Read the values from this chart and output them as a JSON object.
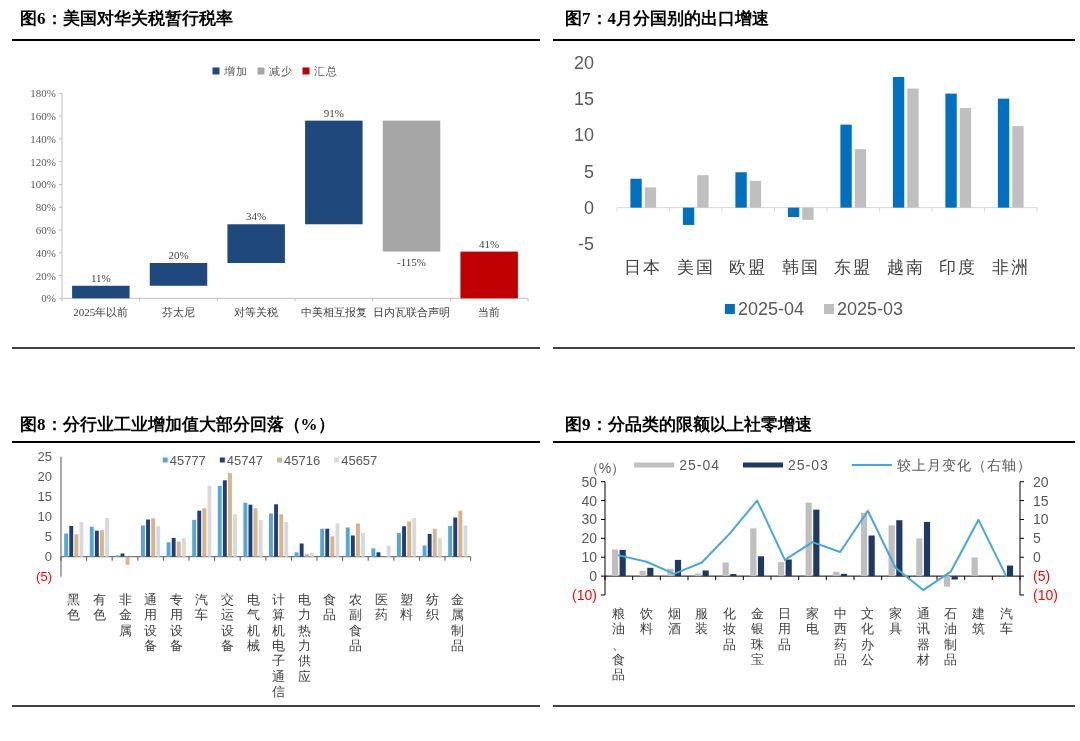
{
  "chart_data": [
    {
      "type": "bar",
      "title": "图6：美国对华关税暂行税率",
      "categories": [
        "2025年以前",
        "芬太尼",
        "对等关税",
        "中美相互报复",
        "日内瓦联合声明",
        "当前"
      ],
      "series": [
        {
          "name": "增加",
          "color": "#1f497d",
          "values": [
            11,
            20,
            34,
            91,
            null,
            null
          ],
          "base": [
            0,
            11,
            31,
            65,
            null,
            null
          ],
          "value_labels": [
            "11%",
            "20%",
            "34%",
            "91%",
            null,
            null
          ]
        },
        {
          "name": "减少",
          "color": "#a6a6a6",
          "values": [
            null,
            null,
            null,
            null,
            -115,
            null
          ],
          "base": [
            null,
            null,
            null,
            null,
            156,
            null
          ],
          "value_labels": [
            null,
            null,
            null,
            null,
            "-115%",
            null
          ]
        },
        {
          "name": "汇总",
          "color": "#c00000",
          "values": [
            null,
            null,
            null,
            null,
            null,
            41
          ],
          "base": [
            null,
            null,
            null,
            null,
            null,
            0
          ],
          "value_labels": [
            null,
            null,
            null,
            null,
            null,
            "41%"
          ]
        }
      ],
      "ylim": [
        0,
        180
      ],
      "yticks": [
        {
          "value": 0,
          "label": "0%"
        },
        {
          "value": 20,
          "label": "20%"
        },
        {
          "value": 40,
          "label": "40%"
        },
        {
          "value": 60,
          "label": "60%"
        },
        {
          "value": 80,
          "label": "80%"
        },
        {
          "value": 100,
          "label": "100%"
        },
        {
          "value": 120,
          "label": "120%"
        },
        {
          "value": 140,
          "label": "140%"
        },
        {
          "value": 160,
          "label": "160%"
        },
        {
          "value": 180,
          "label": "180%"
        }
      ],
      "legend": "top"
    },
    {
      "type": "bar",
      "title": "图7：4月分国别的出口增速",
      "categories": [
        "日本",
        "美国",
        "欧盟",
        "韩国",
        "东盟",
        "越南",
        "印度",
        "非洲"
      ],
      "series": [
        {
          "name": "2025-04",
          "color": "#0070c0",
          "values": [
            4.0,
            -2.4,
            4.9,
            -1.3,
            11.5,
            18.1,
            15.8,
            15.1
          ]
        },
        {
          "name": "2025-03",
          "color": "#bfbfbf",
          "values": [
            2.8,
            4.5,
            3.7,
            -1.7,
            8.1,
            16.5,
            13.8,
            11.3
          ]
        }
      ],
      "ylim": [
        -5,
        20
      ],
      "yticks": [
        -5,
        0,
        5,
        10,
        15,
        20
      ],
      "legend": "bottom"
    },
    {
      "type": "bar",
      "title": "图8：分行业工业增加值大部分回落（%）",
      "categories": [
        "黑色",
        "有色",
        "非金属",
        "通用设备",
        "专用设备",
        "汽车",
        "交运设备",
        "电气机械",
        "计算机电子通信",
        "电力热力供应",
        "食品",
        "农副食品",
        "医药",
        "塑料",
        "纺织",
        "金属制品"
      ],
      "series": [
        {
          "name": "45777",
          "color": "#56a6dc",
          "values": [
            5.8,
            7.5,
            0.3,
            7.8,
            3.6,
            9.2,
            17.7,
            13.5,
            10.8,
            1.1,
            7.0,
            7.3,
            2.1,
            5.9,
            2.8,
            7.7
          ]
        },
        {
          "name": "45747",
          "color": "#203f79",
          "values": [
            7.7,
            6.5,
            0.8,
            9.3,
            4.7,
            11.5,
            19.1,
            13.0,
            13.1,
            3.3,
            7.0,
            5.3,
            1.1,
            7.6,
            5.7,
            9.8
          ]
        },
        {
          "name": "45716",
          "color": "#d8b48a",
          "values": [
            5.6,
            6.6,
            -2.0,
            9.6,
            3.8,
            12.1,
            20.9,
            12.1,
            10.6,
            0.7,
            5.1,
            8.3,
            null,
            8.8,
            7.0,
            11.5
          ]
        },
        {
          "name": "45657",
          "color": "#d9d9d9",
          "values": [
            8.7,
            9.7,
            null,
            7.6,
            4.6,
            17.7,
            10.6,
            9.2,
            8.7,
            1.0,
            8.3,
            6.0,
            2.8,
            9.7,
            4.6,
            7.8
          ]
        }
      ],
      "ylim": [
        -5,
        25
      ],
      "yticks": [
        {
          "value": -5,
          "label": "(5)"
        },
        0,
        5,
        10,
        15,
        20,
        25
      ],
      "legend": "top"
    },
    {
      "type": "bar",
      "title": "图9：分品类的限额以上社零增速",
      "ylabel": "（%）",
      "categories": [
        "粮油、食品",
        "饮料",
        "烟酒",
        "服装",
        "化妆品",
        "金银珠宝",
        "日用品",
        "家电",
        "中西药品",
        "文化办公",
        "家具",
        "通讯器材",
        "石油制品",
        "建筑",
        "汽车"
      ],
      "series": [
        {
          "name": "25-04",
          "color": "#bfbfbf",
          "values": [
            14.1,
            2.8,
            3.9,
            1.4,
            7.2,
            25.3,
            7.4,
            38.9,
            2.3,
            33.5,
            26.9,
            19.9,
            -5.6,
            9.9,
            null
          ]
        },
        {
          "name": "25-03",
          "color": "#203864",
          "values": [
            13.9,
            4.4,
            8.6,
            3.0,
            1.1,
            10.5,
            8.8,
            35.2,
            1.2,
            21.5,
            29.6,
            28.7,
            -1.8,
            null,
            5.6
          ]
        },
        {
          "name": "较上月变化（右轴）",
          "type": "line",
          "axis": "y2",
          "color": "#47a7dc",
          "values": [
            0.5,
            -1.2,
            -4.4,
            -1.4,
            6.2,
            15.0,
            -0.7,
            4.0,
            1.4,
            12.3,
            -2.8,
            -8.7,
            -3.8,
            9.9,
            -5.0
          ]
        }
      ],
      "ylim": [
        -10,
        50
      ],
      "yticks": [
        {
          "value": -10,
          "label": "(10)"
        },
        0,
        10,
        20,
        30,
        40,
        50
      ],
      "y2lim": [
        -10,
        20
      ],
      "y2ticks": [
        {
          "value": -10,
          "label": "(10)"
        },
        {
          "value": -5,
          "label": "(5)"
        },
        0,
        5,
        10,
        15,
        20
      ],
      "legend": "top"
    }
  ]
}
